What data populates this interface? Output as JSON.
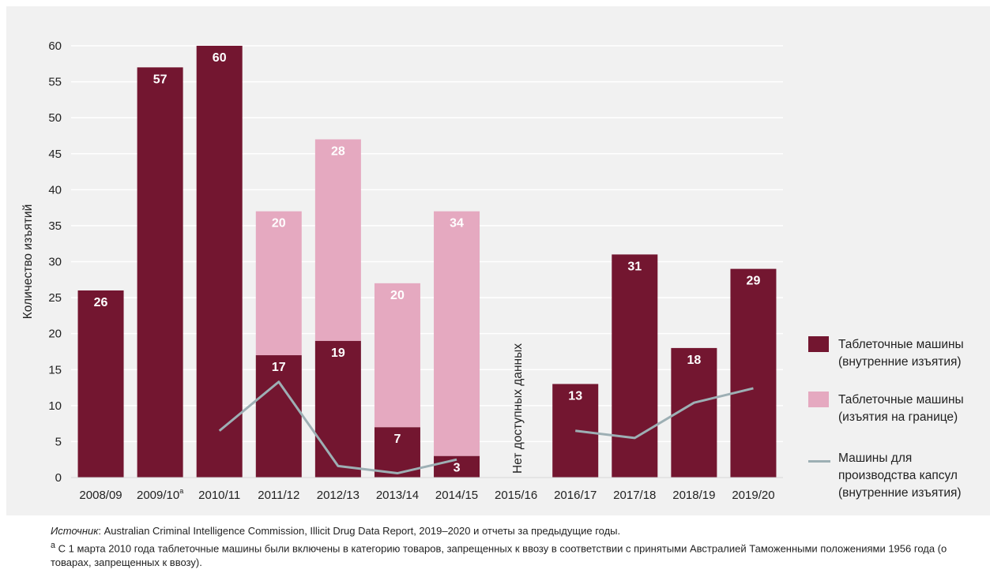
{
  "chart_data": {
    "type": "bar",
    "stacked": true,
    "ylabel": "Количество изъятий",
    "ylim": [
      0,
      60
    ],
    "yticks": [
      0,
      5,
      10,
      15,
      20,
      25,
      30,
      35,
      40,
      45,
      50,
      55,
      60
    ],
    "grid": true,
    "legend_position": "right",
    "categories": [
      "2008/09",
      "2009/10",
      "2010/11",
      "2011/12",
      "2012/13",
      "2013/14",
      "2014/15",
      "2015/16",
      "2016/17",
      "2017/18",
      "2018/19",
      "2019/20"
    ],
    "category_superscripts": [
      "",
      "a",
      "",
      "",
      "",
      "",
      "",
      "",
      "",
      "",
      "",
      ""
    ],
    "series": [
      {
        "name": "Таблеточные машины (внутренние изъятия)",
        "kind": "bar",
        "color": "#731630",
        "values": [
          26,
          57,
          60,
          17,
          19,
          7,
          3,
          null,
          13,
          31,
          18,
          29
        ]
      },
      {
        "name": "Таблеточные машины (изъятия на границе)",
        "kind": "bar",
        "color": "#e5a9c0",
        "values": [
          null,
          null,
          null,
          20,
          28,
          20,
          34,
          null,
          null,
          null,
          null,
          null
        ]
      },
      {
        "name": "Машины для производства капсул (внутренние изъятия)",
        "kind": "line",
        "color": "#9dafb4",
        "values": [
          null,
          null,
          6.5,
          13.3,
          1.6,
          0.6,
          2.5,
          null,
          6.5,
          5.5,
          10.4,
          12.4
        ]
      }
    ],
    "annotations": [
      {
        "category": "2015/16",
        "text": "Нет доступных данных"
      }
    ]
  },
  "legend": {
    "items": [
      {
        "label_line1": "Таблеточные машины",
        "label_line2": "(внутренние изъятия)",
        "color": "#731630"
      },
      {
        "label_line1": "Таблеточные машины",
        "label_line2": "(изъятия на границе)",
        "color": "#e5a9c0"
      },
      {
        "label_line1": "Машины для",
        "label_line2": "производства капсул",
        "label_line3": "(внутренние изъятия)",
        "color": "#9dafb4"
      }
    ]
  },
  "footnotes": {
    "source_lead": "Источник",
    "source_text": ": Australian Criminal Intelligence Commission, Illicit Drug Data Report, 2019–2020 и отчеты за предыдущие годы.",
    "note_marker": "a",
    "note_text": " С 1 марта 2010 года таблеточные машины были включены в категорию товаров, запрещенных к ввозу в соответствии с принятыми Австралией Таможенными положениями 1956 года (о товарах, запрещенных к ввозу)."
  }
}
